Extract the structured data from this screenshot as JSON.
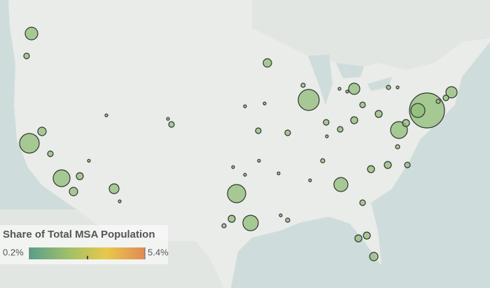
{
  "legend": {
    "title": "Share of Total MSA Population",
    "min": {
      "value": 0.2,
      "label": "0.2%"
    },
    "max": {
      "value": 5.4,
      "label": "5.4%"
    },
    "colors": [
      "#5a9e8a",
      "#9fbf6a",
      "#e8c84a",
      "#e08a55"
    ]
  },
  "bubbles": {
    "color": "#8fbd78",
    "values": [
      0.81,
      0.16,
      1.96,
      1.44,
      0.36,
      0.36,
      0.16,
      0.25,
      0.49,
      0.04,
      0.04,
      0.16,
      0.04,
      0.04,
      0.36,
      2.25,
      0.64,
      0.09,
      0.16,
      0.04,
      0.04,
      0.16,
      1.69,
      1.21,
      0.25,
      0.09,
      0.04,
      0.04,
      0.04,
      0.09,
      1.0,
      0.16,
      0.25,
      0.16,
      0.04,
      0.16,
      0.25,
      0.09,
      1.44,
      0.25,
      1.0,
      6.25,
      0.64,
      0.16,
      0.09,
      0.09,
      0.16,
      0.25,
      0.25,
      0.09,
      0.16,
      0.25,
      0.25,
      0.36,
      0.04,
      0.04,
      0.04,
      0.04,
      0.04,
      0.04
    ]
  }
}
